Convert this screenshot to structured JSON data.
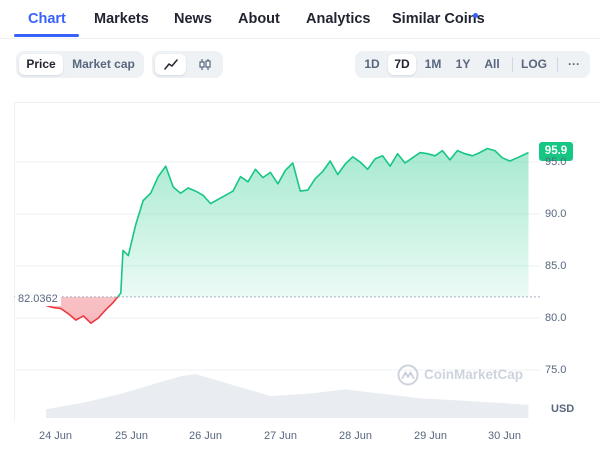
{
  "tabs": [
    {
      "label": "Chart"
    },
    {
      "label": "Markets"
    },
    {
      "label": "News"
    },
    {
      "label": "About"
    },
    {
      "label": "Analytics"
    },
    {
      "label": "Similar Coins"
    }
  ],
  "active_tab": "Chart",
  "toolbar": {
    "metric_buttons": [
      "Price",
      "Market cap"
    ],
    "selected_metric": "Price",
    "chart_style_icons": [
      "line-chart-icon",
      "candlestick-icon"
    ],
    "selected_style": "line-chart-icon",
    "ranges": [
      "1D",
      "7D",
      "1M",
      "1Y",
      "All"
    ],
    "selected_range": "7D",
    "log_label": "LOG",
    "more_label": "···"
  },
  "colors": {
    "accent": "#3861fb",
    "up": "#16c784",
    "down": "#ea3943",
    "axis_text": "#58667e"
  },
  "watermark": {
    "text": "CoinMarketCap",
    "icon": "coinmarketcap-logo-icon"
  },
  "chart_data": {
    "type": "line",
    "x_labels": [
      "24 Jun",
      "25 Jun",
      "26 Jun",
      "27 Jun",
      "28 Jun",
      "29 Jun",
      "30 Jun"
    ],
    "y_ticks": [
      "75.0",
      "80.0",
      "85.0",
      "90.0",
      "95.0"
    ],
    "ylim": [
      72.0,
      99.0
    ],
    "currency_label": "USD",
    "reference_value": 82.0362,
    "reference_label": "82.0362",
    "current_value": 95.9,
    "current_label": "95.9",
    "baseline_coloring": {
      "above": "#16c784",
      "below": "#ea3943"
    },
    "grid": "horizontal",
    "series": [
      {
        "x": [
          0.0,
          0.1,
          0.2,
          0.3,
          0.4,
          0.5,
          0.6,
          0.7,
          0.8,
          0.9,
          1.0,
          1.03,
          1.1,
          1.2,
          1.3,
          1.4,
          1.5,
          1.6,
          1.7,
          1.8,
          1.9,
          2.0,
          2.1,
          2.2,
          2.3,
          2.4,
          2.5,
          2.6,
          2.7,
          2.8,
          2.9,
          3.0,
          3.1,
          3.2,
          3.3,
          3.4,
          3.5,
          3.6,
          3.7,
          3.8,
          3.9,
          4.0,
          4.1,
          4.2,
          4.3,
          4.4,
          4.5,
          4.6,
          4.7,
          4.8,
          4.9,
          5.0,
          5.1,
          5.2,
          5.3,
          5.4,
          5.5,
          5.6,
          5.7,
          5.8,
          5.9,
          6.0,
          6.1,
          6.2,
          6.3,
          6.45
        ],
        "y": [
          81.2,
          81.0,
          80.9,
          80.4,
          79.8,
          80.2,
          79.5,
          80.0,
          80.8,
          81.5,
          82.4,
          86.5,
          86.0,
          89.0,
          91.3,
          92.0,
          93.6,
          94.6,
          92.6,
          92.0,
          92.5,
          92.2,
          91.8,
          91.0,
          91.4,
          91.8,
          92.2,
          93.6,
          93.1,
          94.3,
          93.5,
          94.0,
          92.9,
          94.2,
          94.9,
          92.2,
          92.3,
          93.4,
          94.1,
          95.1,
          93.8,
          94.8,
          95.5,
          95.0,
          94.3,
          95.3,
          95.6,
          94.6,
          95.8,
          94.9,
          95.4,
          95.9,
          95.8,
          95.6,
          96.1,
          95.2,
          96.1,
          95.8,
          95.6,
          95.9,
          96.3,
          96.1,
          95.4,
          95.1,
          95.4,
          95.9
        ]
      }
    ],
    "volume": {
      "x": [
        0.0,
        0.5,
        1.0,
        1.5,
        1.8,
        2.0,
        2.3,
        2.6,
        3.0,
        3.5,
        4.0,
        4.5,
        5.0,
        5.5,
        6.0,
        6.45
      ],
      "values": [
        0.2,
        0.35,
        0.55,
        0.8,
        0.95,
        1.0,
        0.85,
        0.7,
        0.5,
        0.55,
        0.65,
        0.55,
        0.45,
        0.4,
        0.35,
        0.3
      ]
    }
  }
}
